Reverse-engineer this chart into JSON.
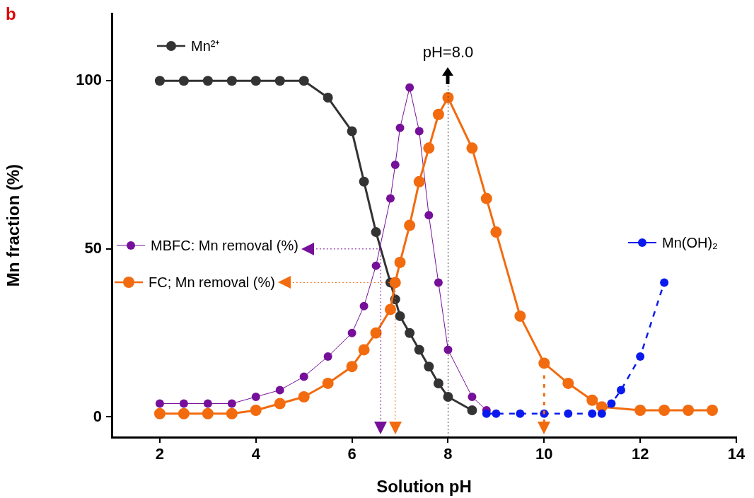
{
  "chart_data": {
    "type": "line",
    "xlabel": "Solution pH",
    "ylabel": "Mn fraction (%)",
    "annotations": [
      "b"
    ],
    "xlim": [
      1,
      14
    ],
    "xticks": [
      2,
      4,
      6,
      8,
      10,
      12,
      14
    ],
    "ylim": [
      -6,
      120
    ],
    "yticks": [
      0,
      50,
      100
    ],
    "grid": false,
    "legend": "left",
    "marker": "circle",
    "series": [
      {
        "name": "Mn²⁺",
        "color": "#333333",
        "line_style": "solid",
        "x": [
          2,
          2.5,
          3,
          3.5,
          4,
          4.5,
          5,
          5.5,
          6,
          6.25,
          6.5,
          6.8,
          6.9,
          7,
          7.2,
          7.4,
          7.6,
          7.8,
          8,
          8.5
        ],
        "values": [
          100,
          100,
          100,
          100,
          100,
          100,
          100,
          95,
          85,
          70,
          55,
          40,
          35,
          30,
          25,
          20,
          15,
          10,
          6,
          2
        ]
      },
      {
        "name": "MBFC: Mn removal (%)",
        "color": "#76109a",
        "line_style": "solid",
        "x": [
          2,
          2.5,
          3,
          3.5,
          4,
          4.5,
          5,
          5.5,
          6,
          6.25,
          6.5,
          6.8,
          6.9,
          7,
          7.2,
          7.4,
          7.6,
          7.8,
          8,
          8.5,
          8.8
        ],
        "values": [
          4,
          4,
          4,
          4,
          6,
          8,
          12,
          18,
          25,
          33,
          45,
          65,
          75,
          86,
          98,
          85,
          60,
          40,
          20,
          6,
          2
        ]
      },
      {
        "name": "FC; Mn removal (%)",
        "color": "#f26b0f",
        "line_style": "solid",
        "x": [
          2,
          2.5,
          3,
          3.5,
          4,
          4.5,
          5,
          5.5,
          6,
          6.25,
          6.5,
          6.8,
          6.9,
          7,
          7.2,
          7.4,
          7.6,
          7.8,
          8,
          8.5,
          8.8,
          9,
          9.5,
          10,
          10.5,
          11,
          11.2,
          12,
          12.5,
          13,
          13.5
        ],
        "values": [
          1,
          1,
          1,
          1,
          2,
          4,
          6,
          10,
          15,
          20,
          25,
          32,
          40,
          46,
          57,
          70,
          80,
          90,
          95,
          80,
          65,
          55,
          30,
          16,
          10,
          5,
          3,
          2,
          2,
          2,
          2
        ]
      },
      {
        "name": "Mn(OH)₂",
        "color": "#0a1aee",
        "line_style": "dashed",
        "x": [
          8.8,
          9,
          9.5,
          10,
          10.5,
          11,
          11.2,
          11.4,
          11.6,
          12,
          12.5
        ],
        "values": [
          1,
          1,
          1,
          1,
          1,
          1,
          1,
          4,
          8,
          18,
          40
        ]
      }
    ],
    "ref_lines": [
      {
        "axis": "x",
        "value": 8,
        "label": "pH=8.0",
        "color": "#333333",
        "line_style": "dotted"
      },
      {
        "axis": "x",
        "value": 6.6,
        "color": "#76109a",
        "line_style": "dotted"
      },
      {
        "axis": "x",
        "value": 6.9,
        "color": "#f26b0f",
        "line_style": "dotted"
      },
      {
        "axis": "x",
        "value": 10,
        "color": "#f26b0f",
        "line_style": "dotted"
      },
      {
        "axis": "y",
        "value": 50,
        "color": "#76109a",
        "line_style": "dotted"
      },
      {
        "axis": "y",
        "value": 40,
        "color": "#f26b0f",
        "line_style": "dotted"
      }
    ]
  }
}
